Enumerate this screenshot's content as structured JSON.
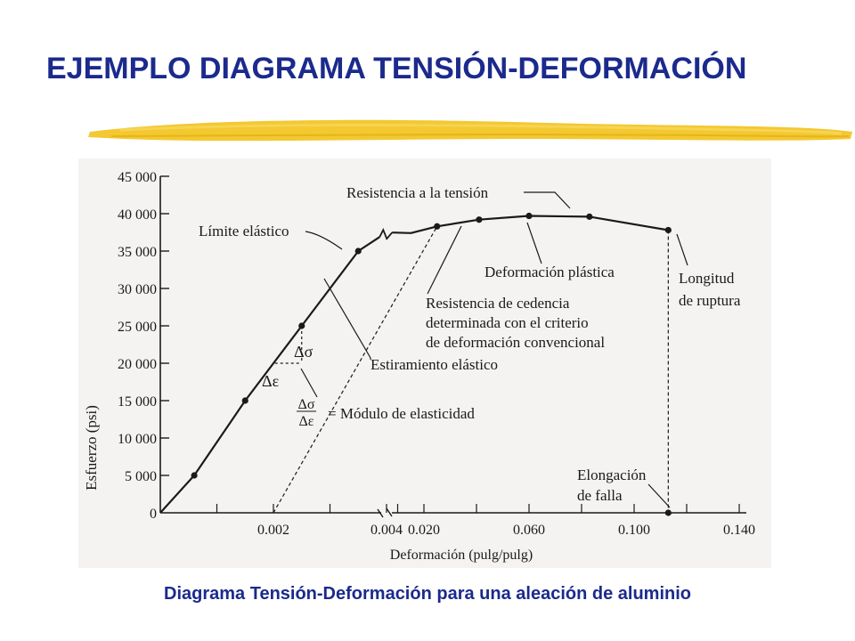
{
  "slide": {
    "title": "EJEMPLO DIAGRAMA TENSIÓN-DEFORMACIÓN",
    "caption": "Diagrama Tensión-Deformación para una aleación de aluminio",
    "title_color": "#1b2a8c",
    "accent_color": "#f2c21b"
  },
  "chart_data": {
    "type": "line",
    "title": "",
    "xlabel": "Deformación (pulg/pulg)",
    "ylabel": "Esfuerzo (psi)",
    "ylim": [
      0,
      45000
    ],
    "y_ticks": [
      "0",
      "5 000",
      "10 000",
      "15 000",
      "20 000",
      "25 000",
      "30 000",
      "35 000",
      "40 000",
      "45 000"
    ],
    "y_tick_values": [
      0,
      5000,
      10000,
      15000,
      20000,
      25000,
      30000,
      35000,
      40000,
      45000
    ],
    "x_ticks": [
      "0.002",
      "0.004",
      "0.020",
      "0.060",
      "0.100",
      "0.140"
    ],
    "x_tick_values": [
      0.002,
      0.004,
      0.02,
      0.06,
      0.1,
      0.14
    ],
    "axis_break_x": "between 0.004 and 0.020",
    "series": [
      {
        "points": [
          {
            "x": 0,
            "y": 0
          },
          {
            "x": 0.0006,
            "y": 5000
          },
          {
            "x": 0.0015,
            "y": 15000
          },
          {
            "x": 0.0025,
            "y": 25000
          },
          {
            "x": 0.0035,
            "y": 35000
          },
          {
            "x": 0.0045,
            "y": 37000
          },
          {
            "x": 0.015,
            "y": 37400
          },
          {
            "x": 0.025,
            "y": 38300
          },
          {
            "x": 0.041,
            "y": 39200
          },
          {
            "x": 0.06,
            "y": 39700
          },
          {
            "x": 0.083,
            "y": 39600
          },
          {
            "x": 0.113,
            "y": 37800
          }
        ]
      }
    ],
    "modulus_triangle": {
      "delta_sigma": "Δσ",
      "delta_epsilon": "Δε",
      "fraction_top": "Δσ",
      "fraction_bottom": "Δε",
      "equals_text": "= Módulo de elasticidad"
    },
    "annotations": {
      "tensile_strength": "Resistencia a la tensión",
      "elastic_limit": "Límite elástico",
      "plastic_deformation": "Deformación plástica",
      "rupture_length_line1": "Longitud",
      "rupture_length_line2": "de ruptura",
      "yield_line1": "Resistencia de cedencia",
      "yield_line2": "determinada con el criterio",
      "yield_line3": "de deformación convencional",
      "elastic_stretch": "Estiramiento elástico",
      "failure_elongation_line1": "Elongación",
      "failure_elongation_line2": "de falla"
    }
  }
}
